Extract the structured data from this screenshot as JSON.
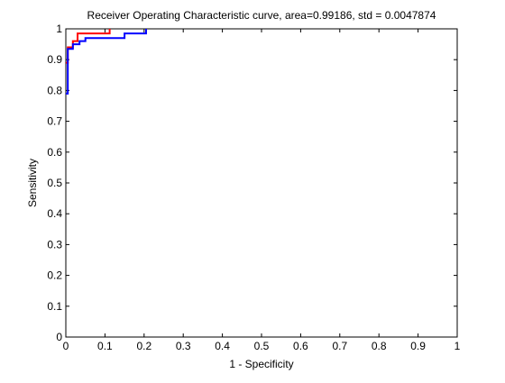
{
  "chart_data": {
    "type": "line",
    "title": "Receiver Operating Characteristic curve, area=0.99186, std = 0.0047874",
    "xlabel": "1 - Specificity",
    "ylabel": "Sensitivity",
    "xlim": [
      0,
      1
    ],
    "ylim": [
      0,
      1
    ],
    "xticks": [
      0,
      0.1,
      0.2,
      0.3,
      0.4,
      0.5,
      0.6,
      0.7,
      0.8,
      0.9,
      1
    ],
    "yticks": [
      0,
      0.1,
      0.2,
      0.3,
      0.4,
      0.5,
      0.6,
      0.7,
      0.8,
      0.9,
      1
    ],
    "xtick_labels": [
      "0",
      "0.1",
      "0.2",
      "0.3",
      "0.4",
      "0.5",
      "0.6",
      "0.7",
      "0.8",
      "0.9",
      "1"
    ],
    "ytick_labels": [
      "0",
      "0.1",
      "0.2",
      "0.3",
      "0.4",
      "0.5",
      "0.6",
      "0.7",
      "0.8",
      "0.9",
      "1"
    ],
    "grid": false,
    "series": [
      {
        "color": "#ff0000",
        "x": [
          0,
          0,
          0.005,
          0.005,
          0.018,
          0.018,
          0.03,
          0.03,
          0.112,
          0.112
        ],
        "y": [
          0.89,
          0.89,
          0.89,
          0.94,
          0.94,
          0.96,
          0.96,
          0.985,
          0.985,
          1.0
        ]
      },
      {
        "color": "#0000ff",
        "x": [
          0,
          0.005,
          0.005,
          0.018,
          0.018,
          0.035,
          0.035,
          0.05,
          0.05,
          0.15,
          0.15,
          0.205,
          0.205
        ],
        "y": [
          0.79,
          0.79,
          0.935,
          0.935,
          0.95,
          0.95,
          0.96,
          0.96,
          0.97,
          0.97,
          0.985,
          0.985,
          1.0
        ]
      }
    ]
  }
}
